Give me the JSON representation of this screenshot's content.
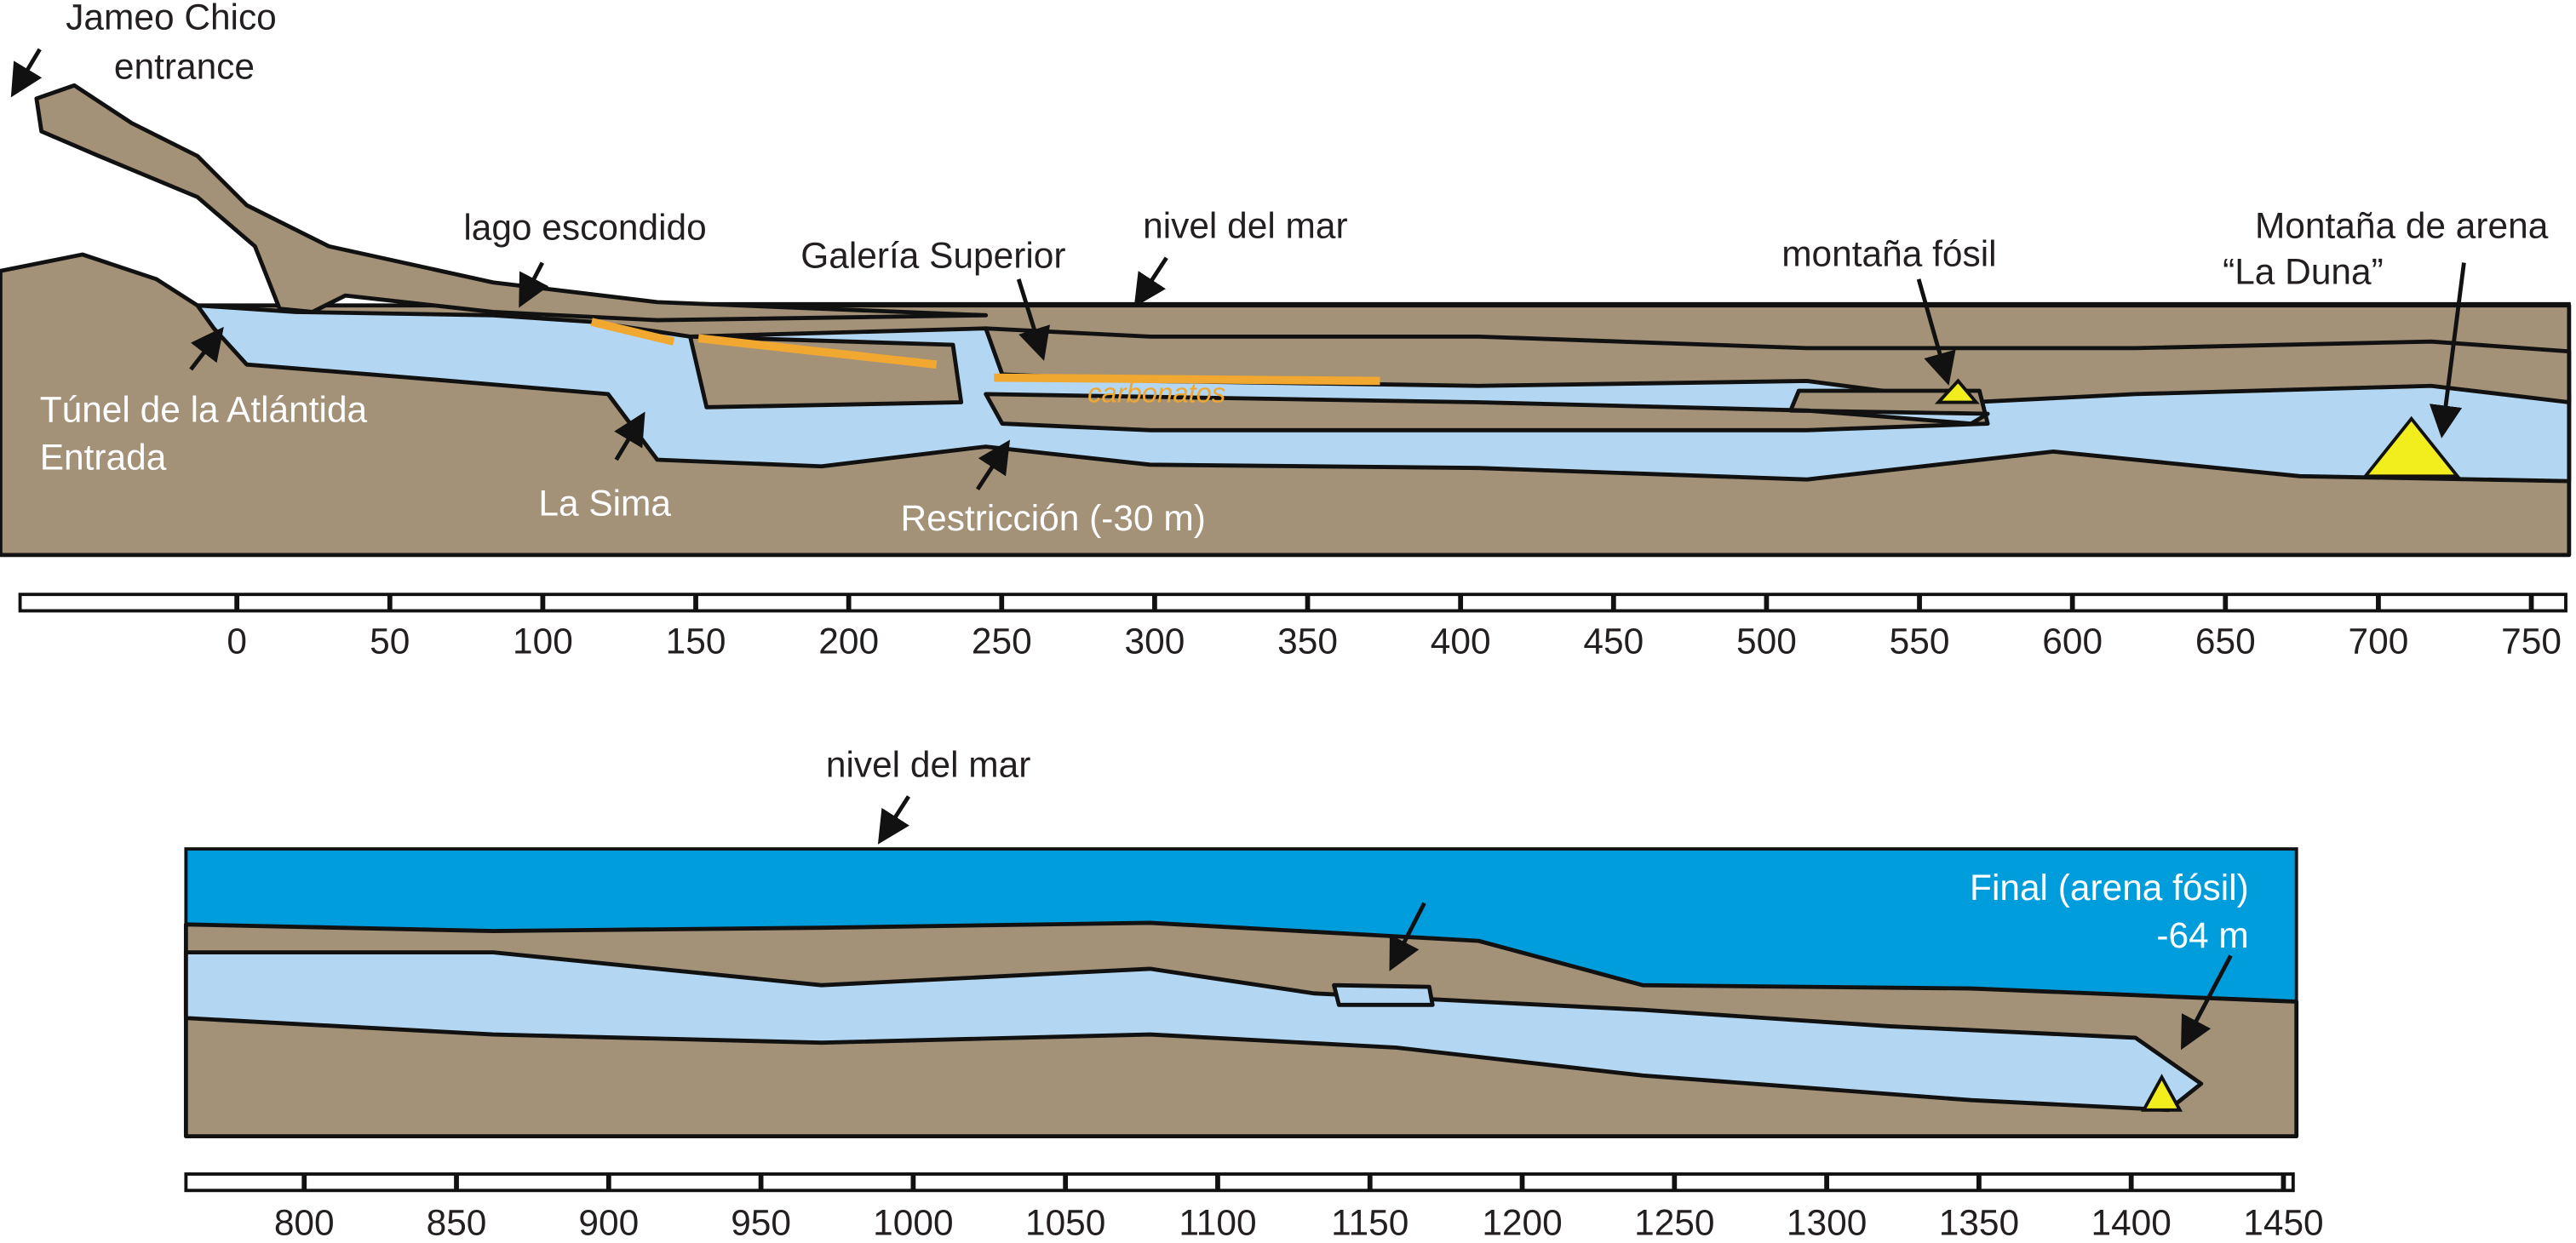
{
  "upper_profile": {
    "labels": {
      "entrance_1": "Jameo Chico",
      "entrance_2": "entrance",
      "lago": "lago escondido",
      "galeria": "Galería Superior",
      "nivel": "nivel del mar",
      "montana_fosil": "montaña fósil",
      "duna_1": "Montaña de arena",
      "duna_2": "“La Duna”",
      "tunel_1": "Túnel de la Atlántida",
      "tunel_2": "Entrada",
      "sima": "La Sima",
      "restriccion": "Restricción (-30 m)",
      "carbonatos": "carbonatos"
    },
    "scale_ticks": [
      0,
      50,
      100,
      150,
      200,
      250,
      300,
      350,
      400,
      450,
      500,
      550,
      600,
      650,
      700,
      750
    ]
  },
  "lower_profile": {
    "labels": {
      "nivel": "nivel del mar",
      "final_1": "Final (arena fósil)",
      "final_2": "-64 m"
    },
    "scale_ticks": [
      800,
      850,
      900,
      950,
      1000,
      1050,
      1100,
      1150,
      1200,
      1250,
      1300,
      1350,
      1400,
      1450
    ]
  }
}
